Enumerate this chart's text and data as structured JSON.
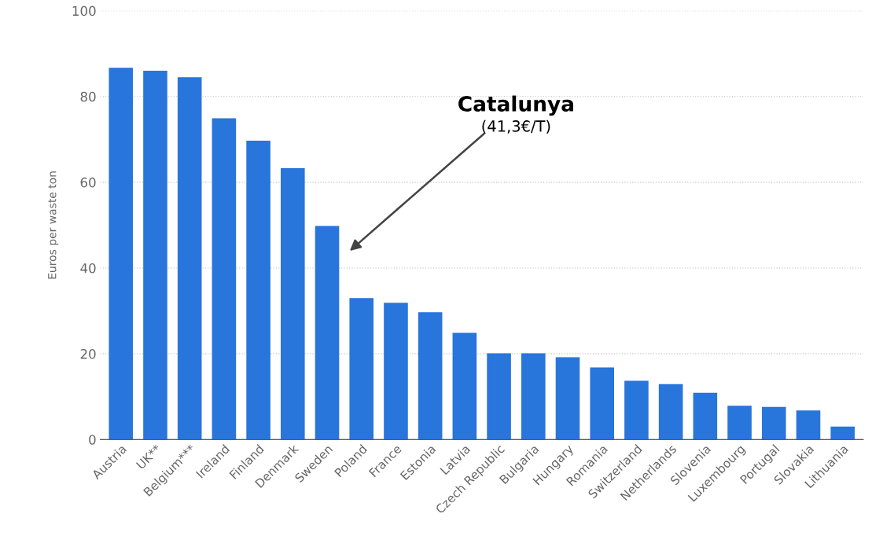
{
  "chart_data": {
    "type": "bar",
    "ylabel": "Euros per waste ton",
    "categories": [
      "Austria",
      "UK**",
      "Belgium***",
      "Ireland",
      "Finland",
      "Denmark",
      "Sweden",
      "Poland",
      "France",
      "Estonia",
      "Latvia",
      "Czech Republic",
      "Bulgaria",
      "Hungary",
      "Romania",
      "Switzerland",
      "Netherlands",
      "Slovenia",
      "Luxembourg",
      "Portugal",
      "Slovakia",
      "Lithuania"
    ],
    "values": [
      86.7,
      86.0,
      84.5,
      74.9,
      69.7,
      63.3,
      49.8,
      33.0,
      31.9,
      29.7,
      24.9,
      20.1,
      20.1,
      19.2,
      16.8,
      13.7,
      12.9,
      10.9,
      7.9,
      7.6,
      6.8,
      3.0
    ],
    "color": "#2875dc",
    "ylim": [
      0,
      100
    ],
    "yticks": [
      0,
      20,
      40,
      60,
      80,
      100
    ],
    "grid": "y",
    "annotations": [
      "Catalunya",
      "(41,3€/T)"
    ]
  }
}
